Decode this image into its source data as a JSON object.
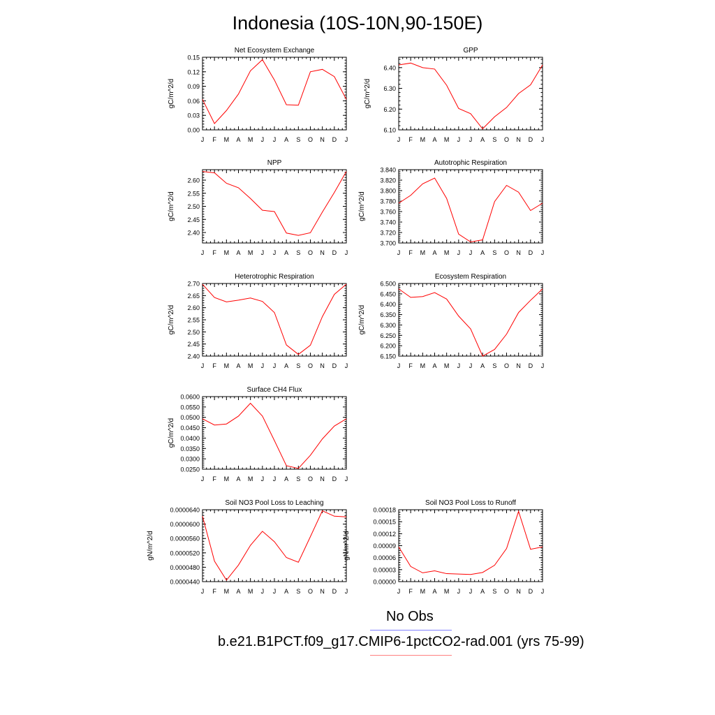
{
  "page": {
    "title": "Indonesia (10S-10N,90-150E)"
  },
  "legend": [
    {
      "label": "No Obs",
      "color": "#8080ff"
    },
    {
      "label": "b.e21.B1PCT.f09_g17.CMIP6-1pctCO2-rad.001 (yrs 75-99)",
      "color": "#ff8080"
    }
  ],
  "colors": {
    "series": "#ff0000",
    "axis": "#000000"
  },
  "chart_data": [
    {
      "type": "line",
      "title": "Net Ecosystem Exchange",
      "ylabel": "gC/m^2/d",
      "categories": [
        "J",
        "F",
        "M",
        "A",
        "M",
        "J",
        "J",
        "A",
        "S",
        "O",
        "N",
        "D",
        "J"
      ],
      "ylim": [
        0,
        0.15
      ],
      "yticks": [
        "0.00",
        "0.03",
        "0.06",
        "0.09",
        "0.12",
        "0.15"
      ],
      "values": [
        0.063,
        0.013,
        0.04,
        0.074,
        0.122,
        0.145,
        0.103,
        0.052,
        0.051,
        0.12,
        0.125,
        0.11,
        0.063
      ]
    },
    {
      "type": "line",
      "title": "GPP",
      "ylabel": "gC/m^2/d",
      "categories": [
        "J",
        "F",
        "M",
        "A",
        "M",
        "J",
        "J",
        "A",
        "S",
        "O",
        "N",
        "D",
        "J"
      ],
      "ylim": [
        6.1,
        6.45
      ],
      "yticks": [
        "6.10",
        "6.20",
        "6.30",
        "6.40"
      ],
      "values": [
        6.413,
        6.422,
        6.4,
        6.393,
        6.315,
        6.203,
        6.178,
        6.105,
        6.163,
        6.208,
        6.275,
        6.317,
        6.413
      ]
    },
    {
      "type": "line",
      "title": "NPP",
      "ylabel": "gC/m^2/d",
      "categories": [
        "J",
        "F",
        "M",
        "A",
        "M",
        "J",
        "J",
        "A",
        "S",
        "O",
        "N",
        "D",
        "J"
      ],
      "ylim": [
        2.36,
        2.64
      ],
      "yticks": [
        "2.40",
        "2.45",
        "2.50",
        "2.55",
        "2.60"
      ],
      "values": [
        2.633,
        2.628,
        2.588,
        2.571,
        2.53,
        2.485,
        2.48,
        2.398,
        2.389,
        2.399,
        2.478,
        2.553,
        2.633
      ]
    },
    {
      "type": "line",
      "title": "Autotrophic Respiration",
      "ylabel": "gC/m^2/d",
      "categories": [
        "J",
        "F",
        "M",
        "A",
        "M",
        "J",
        "J",
        "A",
        "S",
        "O",
        "N",
        "D",
        "J"
      ],
      "ylim": [
        3.7,
        3.84
      ],
      "yticks": [
        "3.700",
        "3.720",
        "3.740",
        "3.760",
        "3.780",
        "3.800",
        "3.820",
        "3.840"
      ],
      "values": [
        3.776,
        3.791,
        3.813,
        3.824,
        3.785,
        3.717,
        3.702,
        3.706,
        3.779,
        3.81,
        3.797,
        3.762,
        3.776
      ]
    },
    {
      "type": "line",
      "title": "Heterotrophic Respiration",
      "ylabel": "gC/m^2/d",
      "categories": [
        "J",
        "F",
        "M",
        "A",
        "M",
        "J",
        "J",
        "A",
        "S",
        "O",
        "N",
        "D",
        "J"
      ],
      "ylim": [
        2.4,
        2.7
      ],
      "yticks": [
        "2.40",
        "2.45",
        "2.50",
        "2.55",
        "2.60",
        "2.65",
        "2.70"
      ],
      "values": [
        2.697,
        2.642,
        2.624,
        2.631,
        2.64,
        2.626,
        2.58,
        2.446,
        2.407,
        2.445,
        2.563,
        2.655,
        2.697
      ]
    },
    {
      "type": "line",
      "title": "Ecosystem Respiration",
      "ylabel": "gC/m^2/d",
      "categories": [
        "J",
        "F",
        "M",
        "A",
        "M",
        "J",
        "J",
        "A",
        "S",
        "O",
        "N",
        "D",
        "J"
      ],
      "ylim": [
        6.15,
        6.5
      ],
      "yticks": [
        "6.150",
        "6.200",
        "6.250",
        "6.300",
        "6.350",
        "6.400",
        "6.450",
        "6.500"
      ],
      "values": [
        6.474,
        6.433,
        6.437,
        6.456,
        6.425,
        6.343,
        6.281,
        6.15,
        6.182,
        6.256,
        6.36,
        6.419,
        6.474
      ]
    },
    {
      "type": "line",
      "title": "Surface CH4 Flux",
      "ylabel": "gC/m^2/d",
      "categories": [
        "J",
        "F",
        "M",
        "A",
        "M",
        "J",
        "J",
        "A",
        "S",
        "O",
        "N",
        "D",
        "J"
      ],
      "ylim": [
        0.025,
        0.06
      ],
      "yticks": [
        "0.0250",
        "0.0300",
        "0.0350",
        "0.0400",
        "0.0450",
        "0.0500",
        "0.0550",
        "0.0600"
      ],
      "values": [
        0.0493,
        0.0463,
        0.0468,
        0.0506,
        0.0568,
        0.0506,
        0.0388,
        0.0267,
        0.0254,
        0.0317,
        0.0396,
        0.0458,
        0.0493
      ]
    },
    {
      "type": "line",
      "title": "Soil NO3 Pool Loss to Leaching",
      "ylabel": "gN/m^2/d",
      "categories": [
        "J",
        "F",
        "M",
        "A",
        "M",
        "J",
        "J",
        "A",
        "S",
        "O",
        "N",
        "D",
        "J"
      ],
      "ylim": [
        4.4e-05,
        6.4e-05
      ],
      "yticks": [
        "0.0000440",
        "0.0000480",
        "0.0000520",
        "0.0000560",
        "0.0000600",
        "0.0000640"
      ],
      "values": [
        6.22e-05,
        4.97e-05,
        4.44e-05,
        4.86e-05,
        5.41e-05,
        5.8e-05,
        5.51e-05,
        5.07e-05,
        4.94e-05,
        5.65e-05,
        6.37e-05,
        6.22e-05,
        6.2e-05
      ]
    },
    {
      "type": "line",
      "title": "Soil NO3 Pool Loss to Runoff",
      "ylabel": "gN/m^2/d",
      "categories": [
        "J",
        "F",
        "M",
        "A",
        "M",
        "J",
        "J",
        "A",
        "S",
        "O",
        "N",
        "D",
        "J"
      ],
      "ylim": [
        0,
        0.00018
      ],
      "yticks": [
        "0.00000",
        "0.00003",
        "0.00006",
        "0.00009",
        "0.00012",
        "0.00015",
        "0.00018"
      ],
      "values": [
        8.7e-05,
        3.8e-05,
        2.2e-05,
        2.7e-05,
        2e-05,
        1.9e-05,
        1.8e-05,
        2.3e-05,
        4.1e-05,
        8.3e-05,
        0.000176,
        8.1e-05,
        8.7e-05
      ]
    }
  ]
}
